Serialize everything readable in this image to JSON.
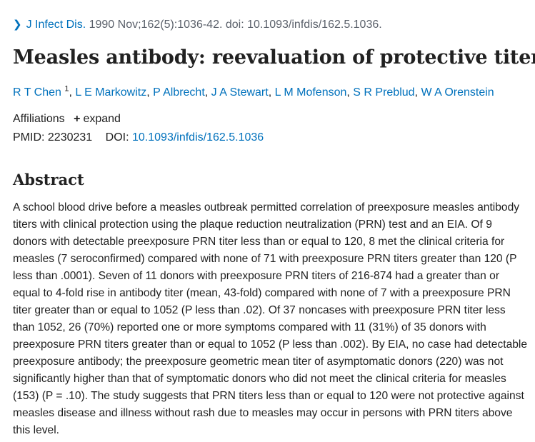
{
  "citation": {
    "journal": "J Infect Dis.",
    "details": "1990 Nov;162(5):1036-42. doi: 10.1093/infdis/162.5.1036."
  },
  "title": "Measles antibody: reevaluation of protective titers",
  "authors": [
    {
      "name": "R T Chen",
      "sup": "1"
    },
    {
      "name": "L E Markowitz"
    },
    {
      "name": "P Albrecht"
    },
    {
      "name": "J A Stewart"
    },
    {
      "name": "L M Mofenson"
    },
    {
      "name": "S R Preblud"
    },
    {
      "name": "W A Orenstein"
    }
  ],
  "affiliations": {
    "label": "Affiliations",
    "expand_label": "expand"
  },
  "ids": {
    "pmid_label": "PMID:",
    "pmid_value": "2230231",
    "doi_label": "DOI:",
    "doi_value": "10.1093/infdis/162.5.1036"
  },
  "abstract": {
    "heading": "Abstract",
    "text": "A school blood drive before a measles outbreak permitted correlation of preexposure measles antibody titers with clinical protection using the plaque reduction neutralization (PRN) test and an EIA. Of 9 donors with detectable preexposure PRN titer less than or equal to 120, 8 met the clinical criteria for measles (7 seroconfirmed) compared with none of 71 with preexposure PRN titers greater than 120 (P less than .0001). Seven of 11 donors with preexposure PRN titers of 216-874 had a greater than or equal to 4-fold rise in antibody titer (mean, 43-fold) compared with none of 7 with a preexposure PRN titer greater than or equal to 1052 (P less than .02). Of 37 noncases with preexposure PRN titer less than 1052, 26 (70%) reported one or more symptoms compared with 11 (31%) of 35 donors with preexposure PRN titers greater than or equal to 1052 (P less than .002). By EIA, no case had detectable preexposure antibody; the preexposure geometric mean titer of asymptomatic donors (220) was not significantly higher than that of symptomatic donors who did not meet the clinical criteria for measles (153) (P = .10). The study suggests that PRN titers less than or equal to 120 were not protective against measles disease and illness without rash due to measles may occur in persons with PRN titers above this level."
  },
  "colors": {
    "link": "#0071bc",
    "text": "#212121",
    "muted": "#5b616b"
  }
}
